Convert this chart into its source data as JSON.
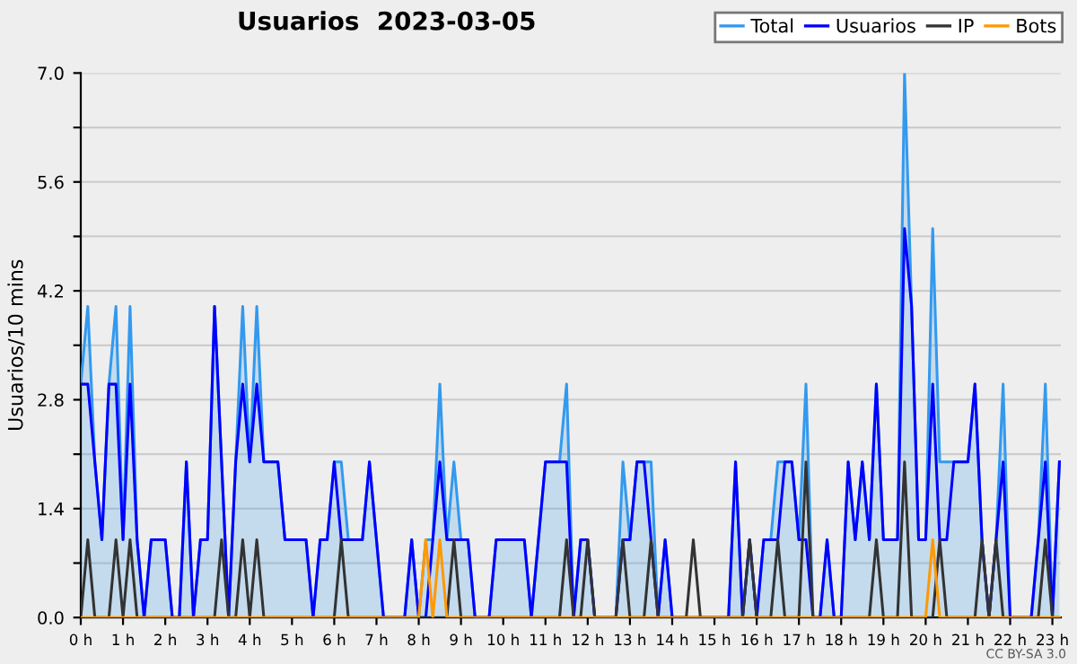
{
  "chart_data": {
    "type": "line",
    "title": "Usuarios  2023-03-05",
    "ylabel": "Usuarios/10 mins",
    "annotations": [
      "CC BY-SA 3.0"
    ],
    "x": [
      0,
      0.1667,
      0.3333,
      0.5,
      0.6667,
      0.8333,
      1,
      1.1667,
      1.3333,
      1.5,
      1.6667,
      1.8333,
      2,
      2.1667,
      2.3333,
      2.5,
      2.6667,
      2.8333,
      3,
      3.1667,
      3.3333,
      3.5,
      3.6667,
      3.8333,
      4,
      4.1667,
      4.3333,
      4.5,
      4.6667,
      4.8333,
      5,
      5.1667,
      5.3333,
      5.5,
      5.6667,
      5.8333,
      6,
      6.1667,
      6.3333,
      6.5,
      6.6667,
      6.8333,
      7,
      7.1667,
      7.3333,
      7.5,
      7.6667,
      7.8333,
      8,
      8.1667,
      8.3333,
      8.5,
      8.6667,
      8.8333,
      9,
      9.1667,
      9.3333,
      9.5,
      9.6667,
      9.8333,
      10,
      10.1667,
      10.3333,
      10.5,
      10.6667,
      10.8333,
      11,
      11.1667,
      11.3333,
      11.5,
      11.6667,
      11.8333,
      12,
      12.1667,
      12.3333,
      12.5,
      12.6667,
      12.8333,
      13,
      13.1667,
      13.3333,
      13.5,
      13.6667,
      13.8333,
      14,
      14.1667,
      14.3333,
      14.5,
      14.6667,
      14.8333,
      15,
      15.1667,
      15.3333,
      15.5,
      15.6667,
      15.8333,
      16,
      16.1667,
      16.3333,
      16.5,
      16.6667,
      16.8333,
      17,
      17.1667,
      17.3333,
      17.5,
      17.6667,
      17.8333,
      18,
      18.1667,
      18.3333,
      18.5,
      18.6667,
      18.8333,
      19,
      19.1667,
      19.3333,
      19.5,
      19.6667,
      19.8333,
      20,
      20.1667,
      20.3333,
      20.5,
      20.6667,
      20.8333,
      21,
      21.1667,
      21.3333,
      21.5,
      21.6667,
      21.8333,
      22,
      22.1667,
      22.3333,
      22.5,
      22.6667,
      22.8333,
      23,
      23.1667
    ],
    "series": [
      {
        "name": "Total",
        "type": "area",
        "color": "#3399ee",
        "values": [
          3,
          4,
          2,
          1,
          3,
          4,
          1,
          4,
          1,
          0,
          1,
          1,
          1,
          0,
          0,
          2,
          0,
          1,
          1,
          4,
          2,
          0,
          2,
          4,
          2,
          4,
          2,
          2,
          2,
          1,
          1,
          1,
          1,
          0,
          1,
          1,
          2,
          2,
          1,
          1,
          1,
          2,
          1,
          0,
          0,
          0,
          0,
          1,
          0,
          1,
          1,
          3,
          1,
          2,
          1,
          1,
          0,
          0,
          0,
          1,
          1,
          1,
          1,
          1,
          0,
          1,
          2,
          2,
          2,
          3,
          0,
          1,
          1,
          0,
          0,
          0,
          0,
          2,
          1,
          2,
          2,
          2,
          0,
          1,
          0,
          0,
          0,
          0,
          0,
          0,
          0,
          0,
          0,
          2,
          0,
          1,
          0,
          1,
          1,
          2,
          2,
          2,
          1,
          3,
          0,
          0,
          1,
          0,
          0,
          2,
          1,
          2,
          1,
          3,
          1,
          1,
          1,
          7,
          4,
          1,
          1,
          5,
          2,
          2,
          2,
          2,
          2,
          3,
          1,
          0,
          1,
          3,
          0,
          0,
          0,
          0,
          1,
          3,
          0,
          2
        ]
      },
      {
        "name": "Usuarios",
        "color": "#0000ff",
        "values": [
          3,
          3,
          2,
          1,
          3,
          3,
          1,
          3,
          1,
          0,
          1,
          1,
          1,
          0,
          0,
          2,
          0,
          1,
          1,
          4,
          2,
          0,
          2,
          3,
          2,
          3,
          2,
          2,
          2,
          1,
          1,
          1,
          1,
          0,
          1,
          1,
          2,
          1,
          1,
          1,
          1,
          2,
          1,
          0,
          0,
          0,
          0,
          1,
          0,
          0,
          1,
          2,
          1,
          1,
          1,
          1,
          0,
          0,
          0,
          1,
          1,
          1,
          1,
          1,
          0,
          1,
          2,
          2,
          2,
          2,
          0,
          1,
          1,
          0,
          0,
          0,
          0,
          1,
          1,
          2,
          2,
          1,
          0,
          1,
          0,
          0,
          0,
          0,
          0,
          0,
          0,
          0,
          0,
          2,
          0,
          1,
          0,
          1,
          1,
          1,
          2,
          2,
          1,
          1,
          0,
          0,
          1,
          0,
          0,
          2,
          1,
          2,
          1,
          3,
          1,
          1,
          1,
          5,
          4,
          1,
          1,
          3,
          1,
          1,
          2,
          2,
          2,
          3,
          1,
          0,
          1,
          2,
          0,
          0,
          0,
          0,
          1,
          2,
          0,
          2
        ]
      },
      {
        "name": "IP",
        "color": "#333333",
        "values": [
          0,
          1,
          0,
          0,
          0,
          1,
          0,
          1,
          0,
          0,
          0,
          0,
          0,
          0,
          0,
          0,
          0,
          0,
          0,
          0,
          1,
          0,
          0,
          1,
          0,
          1,
          0,
          0,
          0,
          0,
          0,
          0,
          0,
          0,
          0,
          0,
          0,
          1,
          0,
          0,
          0,
          0,
          0,
          0,
          0,
          0,
          0,
          0,
          0,
          0,
          0,
          0,
          0,
          1,
          0,
          0,
          0,
          0,
          0,
          0,
          0,
          0,
          0,
          0,
          0,
          0,
          0,
          0,
          0,
          1,
          0,
          0,
          1,
          0,
          0,
          0,
          0,
          1,
          0,
          0,
          0,
          1,
          0,
          0,
          0,
          0,
          0,
          1,
          0,
          0,
          0,
          0,
          0,
          0,
          0,
          1,
          0,
          0,
          0,
          1,
          0,
          0,
          0,
          2,
          0,
          0,
          0,
          0,
          0,
          0,
          0,
          0,
          0,
          1,
          0,
          0,
          0,
          2,
          0,
          0,
          0,
          0,
          1,
          0,
          0,
          0,
          0,
          0,
          1,
          0,
          1,
          0,
          0,
          0,
          0,
          0,
          0,
          1,
          0,
          0
        ]
      },
      {
        "name": "Bots",
        "color": "#ff9900",
        "values": [
          0,
          0,
          0,
          0,
          0,
          0,
          0,
          0,
          0,
          0,
          0,
          0,
          0,
          0,
          0,
          0,
          0,
          0,
          0,
          0,
          0,
          0,
          0,
          0,
          0,
          0,
          0,
          0,
          0,
          0,
          0,
          0,
          0,
          0,
          0,
          0,
          0,
          0,
          0,
          0,
          0,
          0,
          0,
          0,
          0,
          0,
          0,
          0,
          0,
          1,
          0,
          1,
          0,
          0,
          0,
          0,
          0,
          0,
          0,
          0,
          0,
          0,
          0,
          0,
          0,
          0,
          0,
          0,
          0,
          0,
          0,
          0,
          0,
          0,
          0,
          0,
          0,
          0,
          0,
          0,
          0,
          0,
          0,
          0,
          0,
          0,
          0,
          0,
          0,
          0,
          0,
          0,
          0,
          0,
          0,
          0,
          0,
          0,
          0,
          0,
          0,
          0,
          0,
          0,
          0,
          0,
          0,
          0,
          0,
          0,
          0,
          0,
          0,
          0,
          0,
          0,
          0,
          0,
          0,
          0,
          0,
          1,
          0,
          0,
          0,
          0,
          0,
          0,
          0,
          0,
          0,
          0,
          0,
          0,
          0,
          0,
          0,
          0,
          0,
          0
        ]
      }
    ],
    "xlim": [
      0,
      23.2
    ],
    "xticks": [
      {
        "value": 0,
        "label": "0 h"
      },
      {
        "value": 1,
        "label": "1 h"
      },
      {
        "value": 2,
        "label": "2 h"
      },
      {
        "value": 3,
        "label": "3 h"
      },
      {
        "value": 4,
        "label": "4 h"
      },
      {
        "value": 5,
        "label": "5 h"
      },
      {
        "value": 6,
        "label": "6 h"
      },
      {
        "value": 7,
        "label": "7 h"
      },
      {
        "value": 8,
        "label": "8 h"
      },
      {
        "value": 9,
        "label": "9 h"
      },
      {
        "value": 10,
        "label": "10 h"
      },
      {
        "value": 11,
        "label": "11 h"
      },
      {
        "value": 12,
        "label": "12 h"
      },
      {
        "value": 13,
        "label": "13 h"
      },
      {
        "value": 14,
        "label": "14 h"
      },
      {
        "value": 15,
        "label": "15 h"
      },
      {
        "value": 16,
        "label": "16 h"
      },
      {
        "value": 17,
        "label": "17 h"
      },
      {
        "value": 18,
        "label": "18 h"
      },
      {
        "value": 19,
        "label": "19 h"
      },
      {
        "value": 20,
        "label": "20 h"
      },
      {
        "value": 21,
        "label": "21 h"
      },
      {
        "value": 22,
        "label": "22 h"
      },
      {
        "value": 23,
        "label": "23 h"
      }
    ],
    "ylim": [
      0,
      7
    ],
    "yticks": [
      {
        "value": 0,
        "label": "0.0"
      },
      {
        "value": 0.7,
        "label": null
      },
      {
        "value": 1.4,
        "label": "1.4"
      },
      {
        "value": 2.1,
        "label": null
      },
      {
        "value": 2.8,
        "label": "2.8"
      },
      {
        "value": 3.5,
        "label": null
      },
      {
        "value": 4.2,
        "label": "4.2"
      },
      {
        "value": 4.9,
        "label": null
      },
      {
        "value": 5.6,
        "label": "5.6"
      },
      {
        "value": 6.3,
        "label": null
      },
      {
        "value": 7,
        "label": "7.0"
      }
    ],
    "grid": "y",
    "legend": "top right",
    "marker": "none",
    "line_style": "solid"
  }
}
